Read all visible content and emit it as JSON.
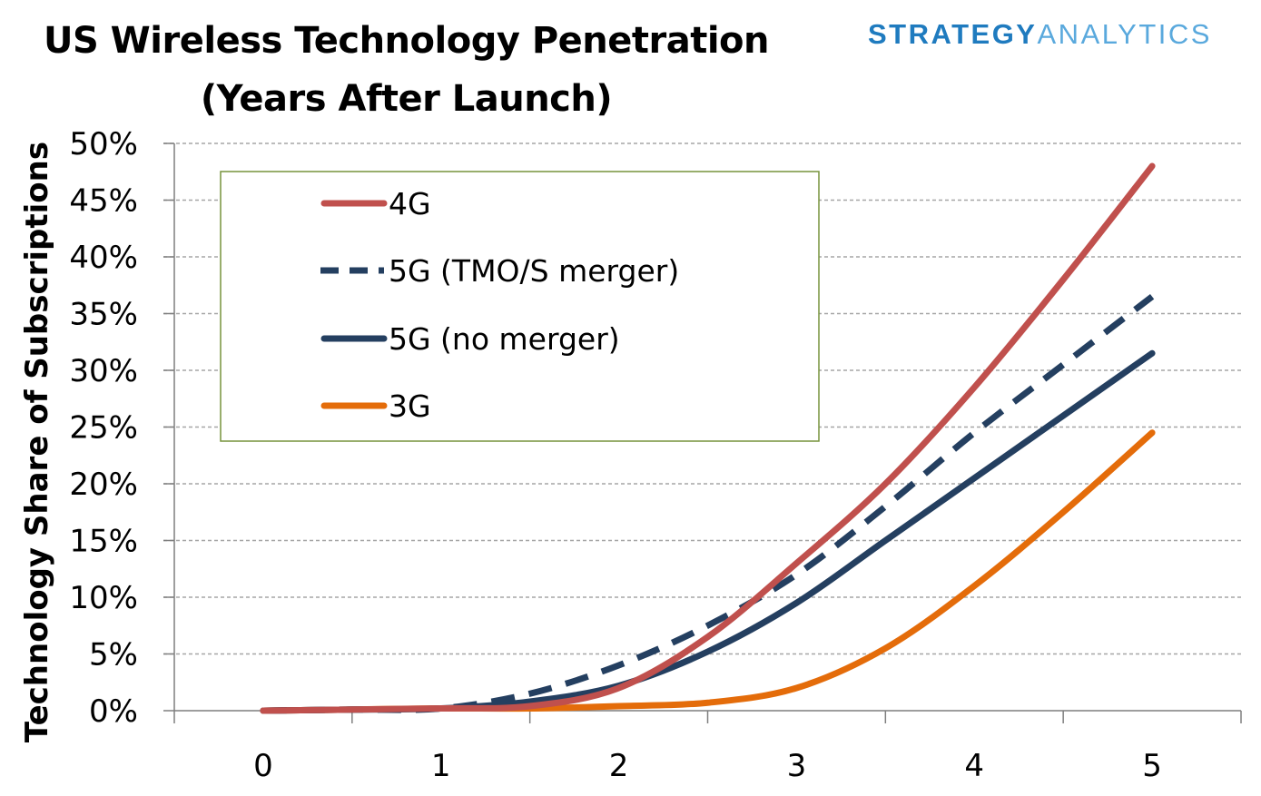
{
  "brand": {
    "part1": "STRATEGY",
    "part2": "ANALYTICS"
  },
  "colors": {
    "4G": "#c0504d",
    "5G_merger": "#243f60",
    "5G_no_merger": "#243f60",
    "3G": "#e46c0a",
    "legend_border": "#77933c",
    "grid": "#a6a6a6"
  },
  "chart_data": {
    "type": "line",
    "title": "US Wireless Technology Penetration",
    "subtitle": "(Years After Launch)",
    "xlabel": "",
    "ylabel": "Technology Share of Subscriptions",
    "xlim": [
      -0.5,
      5.5
    ],
    "ylim": [
      0,
      0.5
    ],
    "x_ticks": [
      "0",
      "1",
      "2",
      "3",
      "4",
      "5"
    ],
    "y_ticks": [
      "0%",
      "5%",
      "10%",
      "15%",
      "20%",
      "25%",
      "30%",
      "35%",
      "40%",
      "45%",
      "50%"
    ],
    "grid": "horizontal dashed",
    "legend_position": "top-left",
    "series": [
      {
        "name": "4G",
        "style": "solid",
        "x": [
          0,
          0.5,
          1,
          1.5,
          2,
          2.5,
          3,
          3.5,
          4,
          4.5,
          5
        ],
        "values": [
          0.0,
          0.001,
          0.002,
          0.004,
          0.02,
          0.065,
          0.13,
          0.2,
          0.285,
          0.38,
          0.48
        ]
      },
      {
        "name": "5G (TMO/S merger)",
        "style": "dashed",
        "x": [
          0,
          0.5,
          1,
          1.5,
          2,
          2.5,
          3,
          3.5,
          4,
          4.5,
          5
        ],
        "values": [
          0.0,
          0.001,
          0.002,
          0.015,
          0.04,
          0.075,
          0.12,
          0.18,
          0.245,
          0.305,
          0.365
        ]
      },
      {
        "name": "5G (no merger)",
        "style": "solid",
        "x": [
          0,
          0.5,
          1,
          1.5,
          2,
          2.5,
          3,
          3.5,
          4,
          4.5,
          5
        ],
        "values": [
          0.0,
          0.001,
          0.002,
          0.008,
          0.022,
          0.052,
          0.095,
          0.15,
          0.205,
          0.26,
          0.315
        ]
      },
      {
        "name": "3G",
        "style": "solid",
        "x": [
          0,
          0.5,
          1,
          1.5,
          2,
          2.5,
          3,
          3.5,
          4,
          4.5,
          5
        ],
        "values": [
          0.0,
          0.001,
          0.002,
          0.002,
          0.004,
          0.007,
          0.02,
          0.055,
          0.11,
          0.175,
          0.245
        ]
      }
    ]
  }
}
